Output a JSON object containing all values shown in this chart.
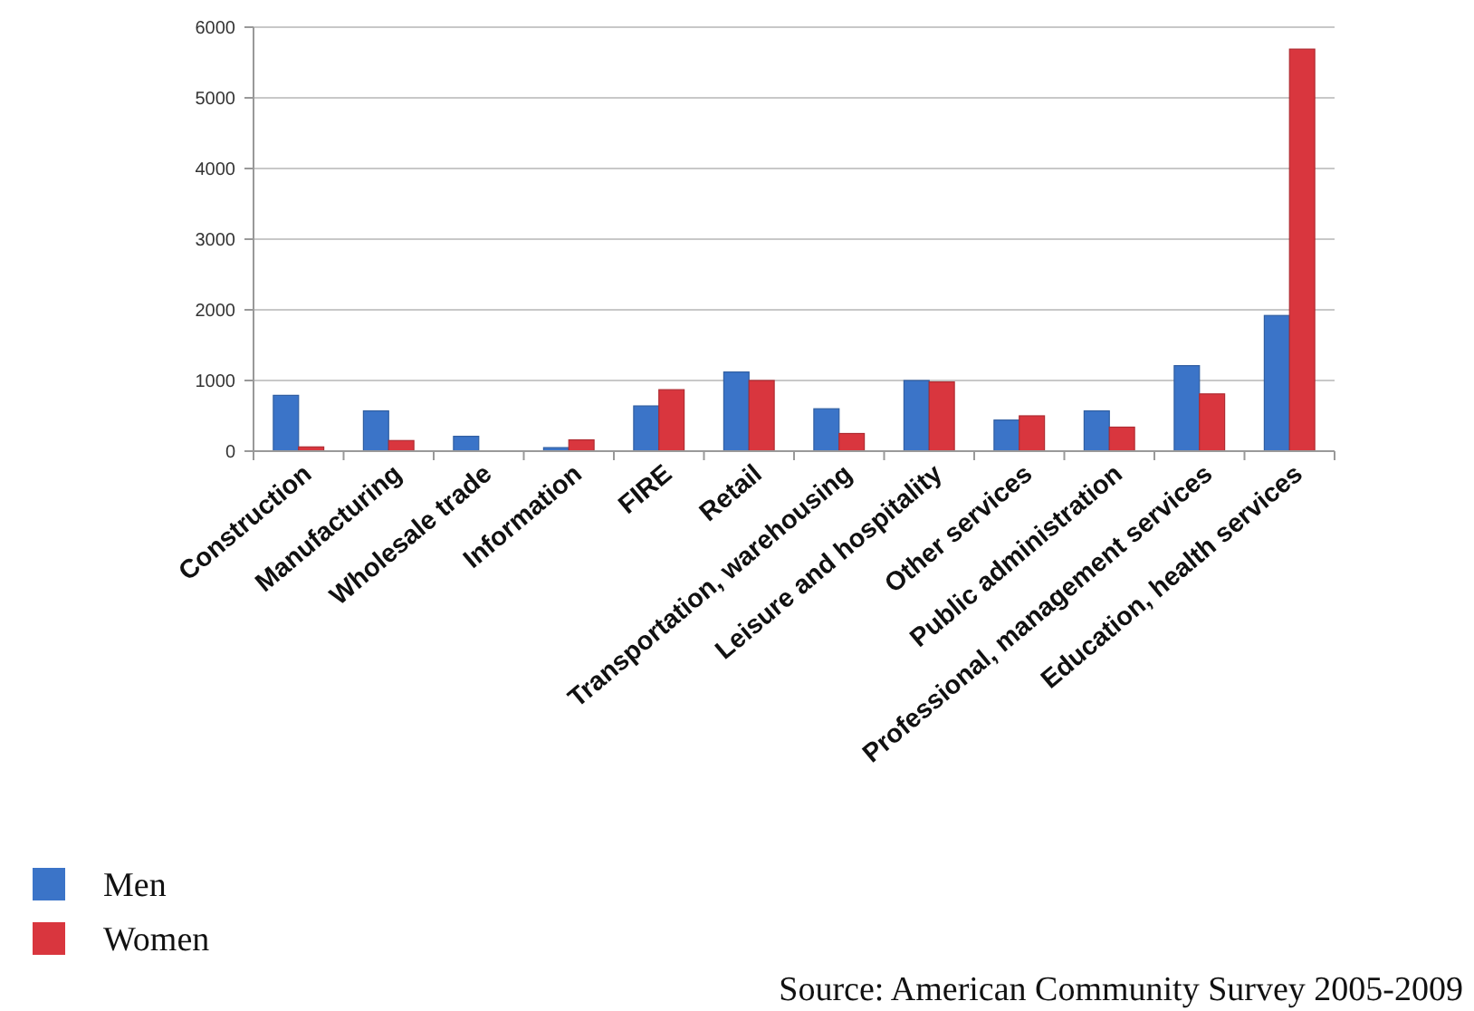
{
  "chart_data": {
    "type": "bar",
    "categories": [
      "Construction",
      "Manufacturing",
      "Wholesale trade",
      "Information",
      "FIRE",
      "Retail",
      "Transportation, warehousing",
      "Leisure and hospitality",
      "Other services",
      "Public administration",
      "Professional, management services",
      "Education, health services"
    ],
    "series": [
      {
        "name": "Men",
        "color": "#3b74c8",
        "values": [
          790,
          570,
          210,
          50,
          640,
          1120,
          600,
          1000,
          440,
          570,
          1210,
          1920
        ]
      },
      {
        "name": "Women",
        "color": "#d9363e",
        "values": [
          60,
          150,
          null,
          160,
          870,
          1000,
          250,
          980,
          500,
          340,
          810,
          5690
        ]
      }
    ],
    "ylim": [
      0,
      6000
    ],
    "yticks": [
      0,
      1000,
      2000,
      3000,
      4000,
      5000,
      6000
    ],
    "grid": "y",
    "legend": "bottom left",
    "annotations": [
      "Source: American Community Survey 2005-2009"
    ]
  }
}
